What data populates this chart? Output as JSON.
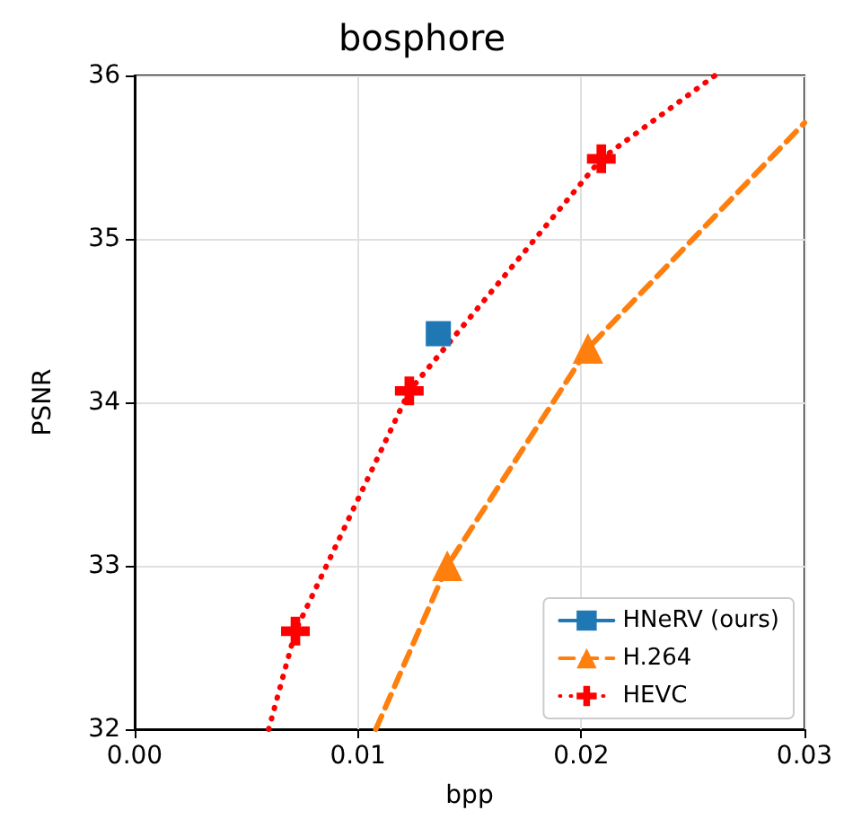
{
  "chart_data": {
    "type": "line",
    "title": "bosphore",
    "xlabel": "bpp",
    "ylabel": "PSNR",
    "xlim": [
      0,
      0.03
    ],
    "xticks": [
      {
        "value": 0,
        "label": "0.00"
      },
      {
        "value": 0.01,
        "label": "0.01"
      },
      {
        "value": 0.02,
        "label": "0.02"
      },
      {
        "value": 0.03,
        "label": "0.03"
      }
    ],
    "ylim": [
      32,
      36
    ],
    "yticks": [
      32,
      33,
      34,
      35,
      36
    ],
    "grid": true,
    "legend": "bottom right",
    "series": [
      {
        "name": "HNeRV (ours)",
        "color": "#1f77b4",
        "line_style": "solid",
        "marker": "square",
        "x": [
          0.0136
        ],
        "values": [
          34.42
        ]
      },
      {
        "name": "H.264",
        "color": "#ff7f0e",
        "line_style": "dashed",
        "marker": "triangle",
        "x": [
          0.0108,
          0.014,
          0.0203,
          0.03
        ],
        "values": [
          32,
          33.0,
          34.33,
          35.71
        ]
      },
      {
        "name": "HEVC",
        "color": "#ff0000",
        "line_style": "dotted",
        "marker": "cross",
        "x": [
          0.006,
          0.0072,
          0.0123,
          0.0209,
          0.026
        ],
        "values": [
          32,
          32.6,
          34.07,
          35.49,
          36
        ]
      }
    ]
  }
}
